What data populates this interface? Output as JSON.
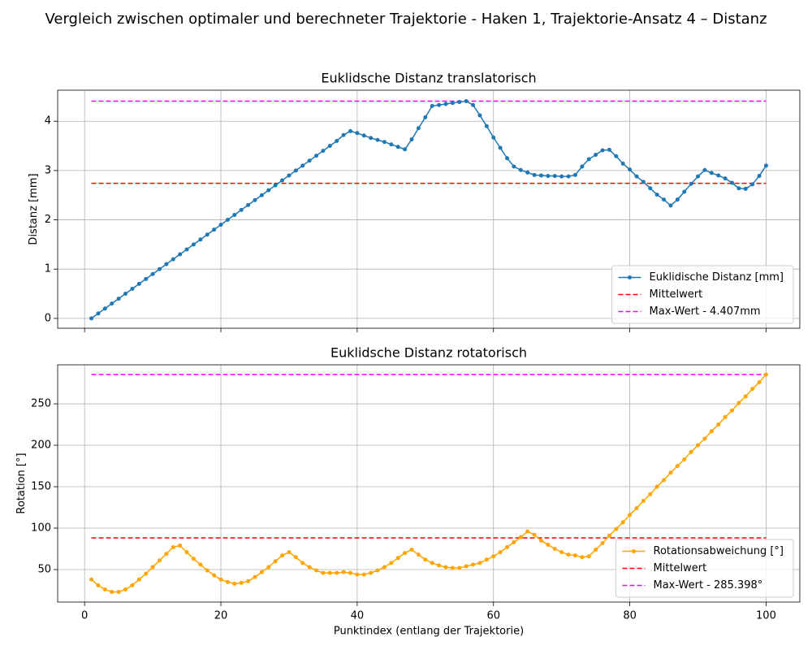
{
  "title": "Vergleich zwischen optimaler und berechneter Trajektorie - Haken 1, Trajektorie-Ansatz 4 – Distanz",
  "chart_data": [
    {
      "type": "line",
      "title": "Euklidsche Distanz translatorisch",
      "ylabel": "Distanz [mm]",
      "x": [
        1,
        2,
        3,
        4,
        5,
        6,
        7,
        8,
        9,
        10,
        11,
        12,
        13,
        14,
        15,
        16,
        17,
        18,
        19,
        20,
        21,
        22,
        23,
        24,
        25,
        26,
        27,
        28,
        29,
        30,
        31,
        32,
        33,
        34,
        35,
        36,
        37,
        38,
        39,
        40,
        41,
        42,
        43,
        44,
        45,
        46,
        47,
        48,
        49,
        50,
        51,
        52,
        53,
        54,
        55,
        56,
        57,
        58,
        59,
        60,
        61,
        62,
        63,
        64,
        65,
        66,
        67,
        68,
        69,
        70,
        71,
        72,
        73,
        74,
        75,
        76,
        77,
        78,
        79,
        80,
        81,
        82,
        83,
        84,
        85,
        86,
        87,
        88,
        89,
        90,
        91,
        92,
        93,
        94,
        95,
        96,
        97,
        98,
        99,
        100
      ],
      "series": [
        {
          "name": "Euklidische Distanz [mm]",
          "color": "#1f77b4",
          "values": [
            0,
            0.1,
            0.2,
            0.3,
            0.4,
            0.5,
            0.6,
            0.7,
            0.8,
            0.9,
            1.0,
            1.1,
            1.2,
            1.3,
            1.4,
            1.5,
            1.6,
            1.7,
            1.8,
            1.9,
            2.0,
            2.1,
            2.2,
            2.3,
            2.4,
            2.5,
            2.6,
            2.7,
            2.8,
            2.9,
            3.0,
            3.1,
            3.2,
            3.3,
            3.4,
            3.5,
            3.6,
            3.72,
            3.8,
            3.76,
            3.71,
            3.66,
            3.62,
            3.58,
            3.53,
            3.48,
            3.43,
            3.63,
            3.86,
            4.08,
            4.31,
            4.33,
            4.35,
            4.37,
            4.39,
            4.407,
            4.33,
            4.12,
            3.9,
            3.67,
            3.46,
            3.25,
            3.08,
            3.01,
            2.96,
            2.91,
            2.9,
            2.89,
            2.89,
            2.88,
            2.88,
            2.91,
            3.08,
            3.23,
            3.32,
            3.41,
            3.42,
            3.29,
            3.14,
            3.02,
            2.88,
            2.77,
            2.64,
            2.51,
            2.41,
            2.29,
            2.41,
            2.57,
            2.73,
            2.88,
            3.01,
            2.95,
            2.9,
            2.84,
            2.75,
            2.64,
            2.63,
            2.72,
            2.89,
            3.1
          ]
        }
      ],
      "hlines": [
        {
          "name": "Mittelwert",
          "color": "#ff0000",
          "value": 2.74
        },
        {
          "name": "Max-Wert - 4.407mm",
          "color": "#ff00ff",
          "value": 4.407
        }
      ],
      "xlim": [
        -3.95,
        104.95
      ],
      "ylim": [
        -0.2,
        4.63
      ],
      "xticks": [
        0,
        20,
        40,
        60,
        80,
        100
      ],
      "yticks": [
        0,
        1,
        2,
        3,
        4
      ],
      "show_xticklabels": false,
      "grid": true,
      "legend": "lower right"
    },
    {
      "type": "line",
      "title": "Euklidsche Distanz rotatorisch",
      "ylabel": "Rotation [°]",
      "xlabel": "Punktindex (entlang der Trajektorie)",
      "x": [
        1,
        2,
        3,
        4,
        5,
        6,
        7,
        8,
        9,
        10,
        11,
        12,
        13,
        14,
        15,
        16,
        17,
        18,
        19,
        20,
        21,
        22,
        23,
        24,
        25,
        26,
        27,
        28,
        29,
        30,
        31,
        32,
        33,
        34,
        35,
        36,
        37,
        38,
        39,
        40,
        41,
        42,
        43,
        44,
        45,
        46,
        47,
        48,
        49,
        50,
        51,
        52,
        53,
        54,
        55,
        56,
        57,
        58,
        59,
        60,
        61,
        62,
        63,
        64,
        65,
        66,
        67,
        68,
        69,
        70,
        71,
        72,
        73,
        74,
        75,
        76,
        77,
        78,
        79,
        80,
        81,
        82,
        83,
        84,
        85,
        86,
        87,
        88,
        89,
        90,
        91,
        92,
        93,
        94,
        95,
        96,
        97,
        98,
        99,
        100
      ],
      "series": [
        {
          "name": "Rotationsabweichung [°]",
          "color": "#ffa500",
          "values": [
            38,
            31,
            26,
            23,
            23,
            26,
            31,
            38,
            45,
            53,
            61,
            69,
            77,
            79,
            71,
            63,
            56,
            49,
            43,
            38,
            35,
            33,
            34,
            36,
            41,
            47,
            53,
            60,
            67,
            71,
            65,
            58,
            53,
            49,
            46,
            46,
            46,
            47,
            46,
            44,
            44,
            46,
            49,
            53,
            58,
            64,
            70,
            74,
            68,
            62,
            58,
            55,
            53,
            52,
            52,
            54,
            56,
            58,
            62,
            66,
            71,
            77,
            83,
            89,
            96,
            92,
            85,
            80,
            75,
            71,
            68,
            67,
            65,
            66,
            74,
            82,
            91,
            99,
            107,
            116,
            124,
            133,
            141,
            150,
            158,
            167,
            175,
            183,
            192,
            200,
            208,
            217,
            225,
            234,
            242,
            251,
            259,
            268,
            276,
            285.398
          ]
        }
      ],
      "hlines": [
        {
          "name": "Mittelwert",
          "color": "#ff0000",
          "value": 88.2
        },
        {
          "name": "Max-Wert - 285.398°",
          "color": "#ff00ff",
          "value": 285.398
        }
      ],
      "xlim": [
        -3.95,
        104.95
      ],
      "ylim": [
        10.8,
        297.1
      ],
      "xticks": [
        0,
        20,
        40,
        60,
        80,
        100
      ],
      "yticks": [
        50,
        100,
        150,
        200,
        250
      ],
      "show_xticklabels": true,
      "grid": true,
      "legend": "lower right"
    }
  ]
}
